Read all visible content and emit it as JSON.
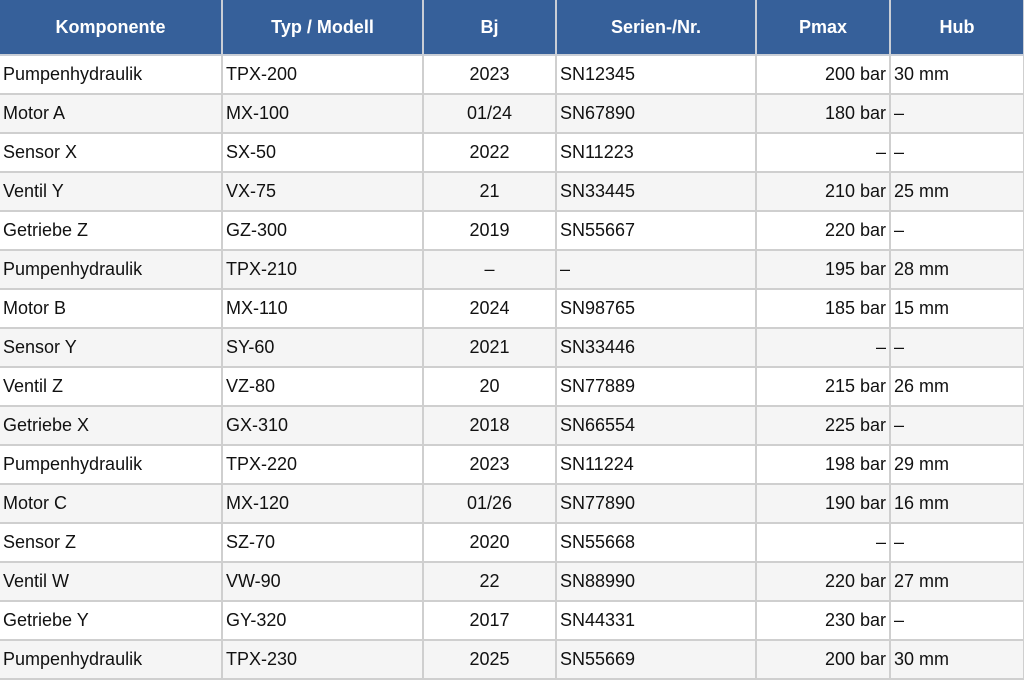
{
  "colors": {
    "header_bg": "#36609a",
    "header_text": "#ffffff",
    "row_alt": "#f5f5f5",
    "border": "#cfcfcf"
  },
  "table": {
    "headers": [
      "Komponente",
      "Typ / Modell",
      "Bj",
      "Serien-/Nr.",
      "Pmax",
      "Hub"
    ],
    "rows": [
      [
        "Pumpenhydraulik",
        "TPX-200",
        "2023",
        "SN12345",
        "200 bar",
        "30 mm"
      ],
      [
        "Motor A",
        "MX-100",
        "01/24",
        "SN67890",
        "180 bar",
        "–"
      ],
      [
        "Sensor X",
        "SX-50",
        "2022",
        "SN11223",
        "–",
        "–"
      ],
      [
        "Ventil Y",
        "VX-75",
        "21",
        "SN33445",
        "210 bar",
        "25 mm"
      ],
      [
        "Getriebe Z",
        "GZ-300",
        "2019",
        "SN55667",
        "220 bar",
        "–"
      ],
      [
        "Pumpenhydraulik",
        "TPX-210",
        "–",
        "–",
        "195 bar",
        "28 mm"
      ],
      [
        "Motor B",
        "MX-110",
        "2024",
        "SN98765",
        "185 bar",
        "15 mm"
      ],
      [
        "Sensor Y",
        "SY-60",
        "2021",
        "SN33446",
        "–",
        "–"
      ],
      [
        "Ventil Z",
        "VZ-80",
        "20",
        "SN77889",
        "215 bar",
        "26 mm"
      ],
      [
        "Getriebe X",
        "GX-310",
        "2018",
        "SN66554",
        "225 bar",
        "–"
      ],
      [
        "Pumpenhydraulik",
        "TPX-220",
        "2023",
        "SN11224",
        "198 bar",
        "29 mm"
      ],
      [
        "Motor C",
        "MX-120",
        "01/26",
        "SN77890",
        "190 bar",
        "16 mm"
      ],
      [
        "Sensor Z",
        "SZ-70",
        "2020",
        "SN55668",
        "–",
        "–"
      ],
      [
        "Ventil W",
        "VW-90",
        "22",
        "SN88990",
        "220 bar",
        "27 mm"
      ],
      [
        "Getriebe Y",
        "GY-320",
        "2017",
        "SN44331",
        "230 bar",
        "–"
      ],
      [
        "Pumpenhydraulik",
        "TPX-230",
        "2025",
        "SN55669",
        "200 bar",
        "30 mm"
      ]
    ]
  }
}
